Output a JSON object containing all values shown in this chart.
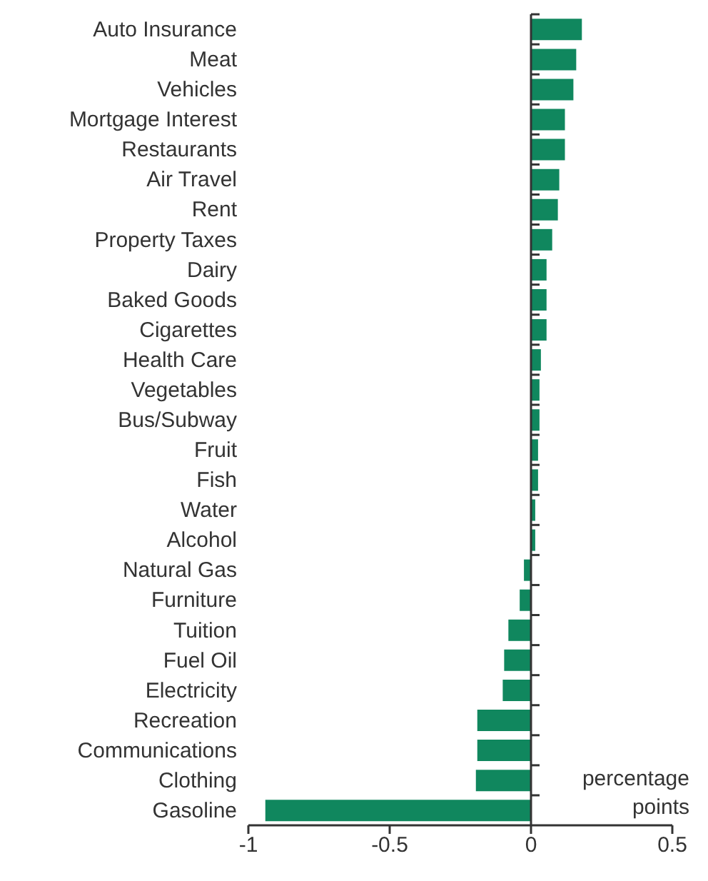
{
  "chart_data": {
    "type": "bar",
    "orientation": "horizontal",
    "xlabel": "percentage points",
    "categories": [
      "Auto Insurance",
      "Meat",
      "Vehicles",
      "Mortgage Interest",
      "Restaurants",
      "Air Travel",
      "Rent",
      "Property Taxes",
      "Dairy",
      "Baked Goods",
      "Cigarettes",
      "Health Care",
      "Vegetables",
      "Bus/Subway",
      "Fruit",
      "Fish",
      "Water",
      "Alcohol",
      "Natural Gas",
      "Furniture",
      "Tuition",
      "Fuel Oil",
      "Electricity",
      "Recreation",
      "Communications",
      "Clothing",
      "Gasoline"
    ],
    "values": [
      0.18,
      0.16,
      0.15,
      0.12,
      0.12,
      0.1,
      0.095,
      0.075,
      0.055,
      0.055,
      0.055,
      0.035,
      0.03,
      0.03,
      0.025,
      0.025,
      0.015,
      0.015,
      -0.025,
      -0.04,
      -0.08,
      -0.095,
      -0.1,
      -0.19,
      -0.19,
      -0.195,
      -0.94
    ],
    "color": "#10875e",
    "xlim": [
      -1,
      0.5
    ],
    "xticks": [
      -1,
      -0.5,
      0,
      0.5
    ]
  }
}
